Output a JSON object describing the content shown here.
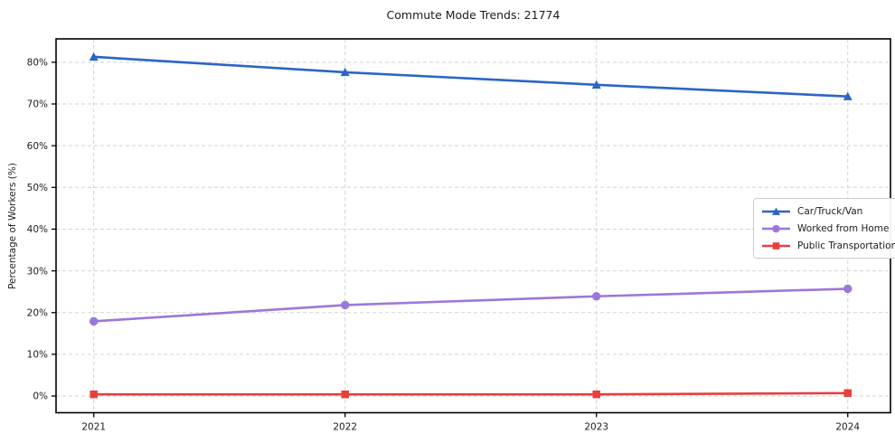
{
  "figure": {
    "title": "Commute Mode Trends: 21774"
  },
  "chart_data": {
    "type": "line",
    "title": "Commute Mode Trends: 21774",
    "xlabel": "",
    "ylabel": "Percentage of Workers (%)",
    "categories": [
      "2021",
      "2022",
      "2023",
      "2024"
    ],
    "series": [
      {
        "name": "Car/Truck/Van",
        "marker": "triangle",
        "color": "#2b65c7",
        "values": [
          81.3,
          77.6,
          74.6,
          71.8
        ]
      },
      {
        "name": "Worked from Home",
        "marker": "circle",
        "color": "#9d77d9",
        "values": [
          17.9,
          21.8,
          23.9,
          25.7
        ]
      },
      {
        "name": "Public Transportation",
        "marker": "square",
        "color": "#e8403d",
        "values": [
          0.4,
          0.4,
          0.4,
          0.7
        ]
      }
    ],
    "yticks": [
      {
        "v": 0,
        "label": "0%"
      },
      {
        "v": 10,
        "label": "10%"
      },
      {
        "v": 20,
        "label": "20%"
      },
      {
        "v": 30,
        "label": "30%"
      },
      {
        "v": 40,
        "label": "40%"
      },
      {
        "v": 50,
        "label": "50%"
      },
      {
        "v": 60,
        "label": "60%"
      },
      {
        "v": 70,
        "label": "70%"
      },
      {
        "v": 80,
        "label": "80%"
      }
    ],
    "ylim": [
      -4,
      85.6
    ],
    "xlim": [
      -0.15,
      3.17
    ],
    "grid": true,
    "legend_position": "center right"
  },
  "colors": {
    "grid": "#d2d2d2",
    "spine": "#000000",
    "text": "#1c1c1c",
    "background": "#ffffff",
    "legend_border": "#cccccc"
  }
}
